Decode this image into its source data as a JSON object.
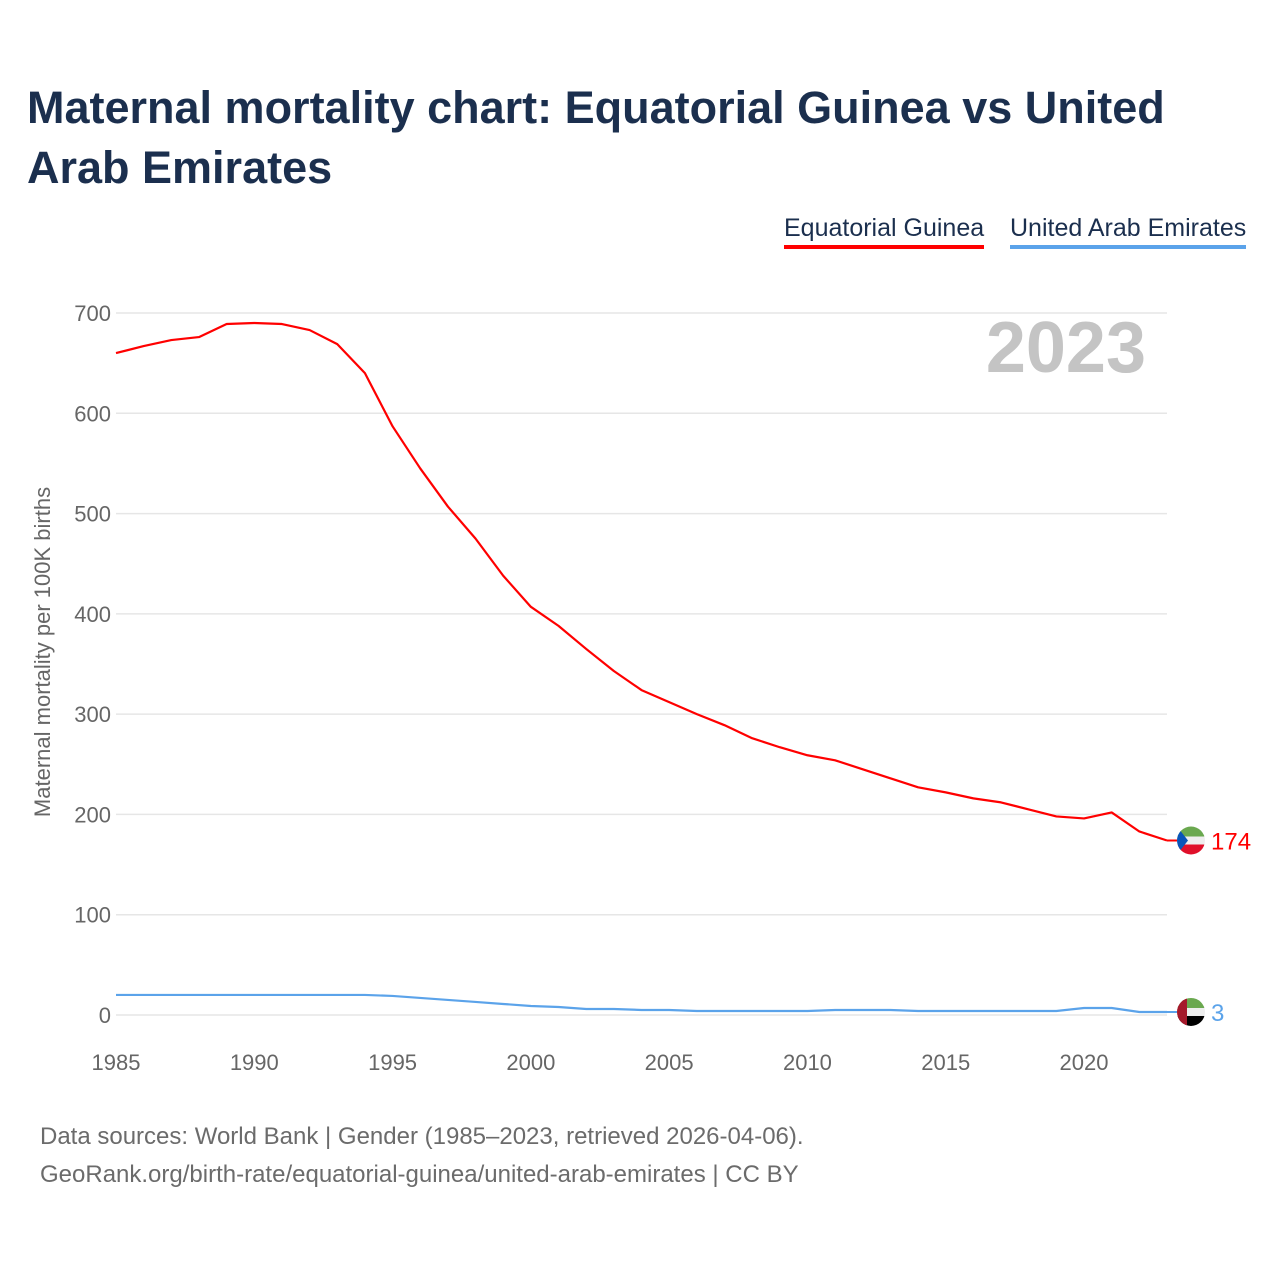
{
  "title": "Maternal mortality chart: Equatorial Guinea vs United Arab Emirates",
  "source_line1": "Data sources: World Bank | Gender (1985–2023, retrieved 2026-04-06).",
  "source_line2": "GeoRank.org/birth-rate/equatorial-guinea/united-arab-emirates | CC BY",
  "chart_data": {
    "type": "line",
    "title": "Maternal mortality chart: Equatorial Guinea vs United Arab Emirates",
    "xlabel": "",
    "ylabel": "Maternal mortality per 100K births",
    "year_label": "2023",
    "xlim": [
      1985,
      2023
    ],
    "ylim": [
      0,
      700
    ],
    "xticks": [
      1985,
      1990,
      1995,
      2000,
      2005,
      2010,
      2015,
      2020
    ],
    "yticks": [
      0,
      100,
      200,
      300,
      400,
      500,
      600,
      700
    ],
    "grid": true,
    "legend_position": "top-right",
    "x": [
      1985,
      1986,
      1987,
      1988,
      1989,
      1990,
      1991,
      1992,
      1993,
      1994,
      1995,
      1996,
      1997,
      1998,
      1999,
      2000,
      2001,
      2002,
      2003,
      2004,
      2005,
      2006,
      2007,
      2008,
      2009,
      2010,
      2011,
      2012,
      2013,
      2014,
      2015,
      2016,
      2017,
      2018,
      2019,
      2020,
      2021,
      2022,
      2023
    ],
    "series": [
      {
        "name": "Equatorial Guinea",
        "color": "#ff0000",
        "end_label": "174",
        "values": [
          660,
          667,
          673,
          676,
          689,
          690,
          689,
          683,
          669,
          640,
          587,
          545,
          507,
          475,
          438,
          407,
          388,
          365,
          343,
          324,
          312,
          300,
          289,
          276,
          267,
          259,
          254,
          245,
          236,
          227,
          222,
          216,
          212,
          205,
          198,
          196,
          202,
          183,
          174
        ]
      },
      {
        "name": "United Arab Emirates",
        "color": "#5ba3ea",
        "end_label": "3",
        "values": [
          20,
          20,
          20,
          20,
          20,
          20,
          20,
          20,
          20,
          20,
          19,
          17,
          15,
          13,
          11,
          9,
          8,
          6,
          6,
          5,
          5,
          4,
          4,
          4,
          4,
          4,
          5,
          5,
          5,
          4,
          4,
          4,
          4,
          4,
          4,
          7,
          7,
          3,
          3
        ]
      }
    ]
  }
}
